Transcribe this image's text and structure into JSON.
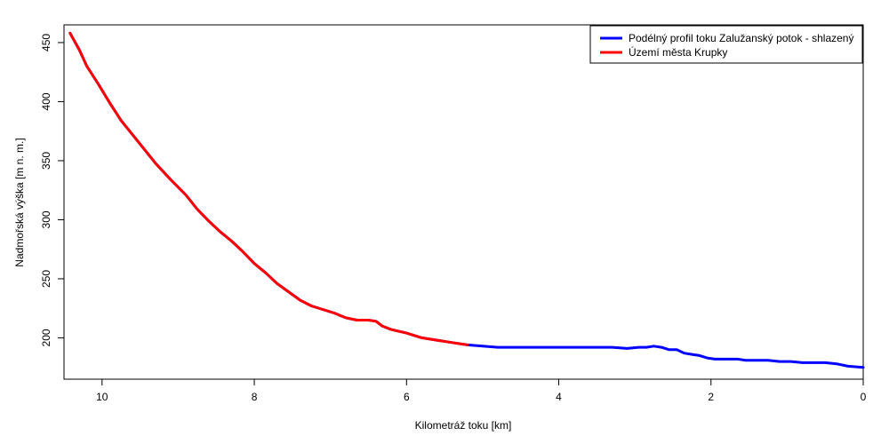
{
  "chart_data": {
    "type": "line",
    "xlabel": "Kilometráž toku [km]",
    "ylabel": "Nadmořská výška [m n. m.]",
    "xlim": [
      10.5,
      0
    ],
    "ylim": [
      165,
      465
    ],
    "x_ticks": [
      {
        "value": 10,
        "label": "10"
      },
      {
        "value": 8,
        "label": "8"
      },
      {
        "value": 6,
        "label": "6"
      },
      {
        "value": 4,
        "label": "4"
      },
      {
        "value": 2,
        "label": "2"
      },
      {
        "value": 0,
        "label": "0"
      }
    ],
    "y_ticks": [
      {
        "value": 200,
        "label": "200"
      },
      {
        "value": 250,
        "label": "250"
      },
      {
        "value": 300,
        "label": "300"
      },
      {
        "value": 350,
        "label": "350"
      },
      {
        "value": 400,
        "label": "400"
      },
      {
        "value": 450,
        "label": "450"
      }
    ],
    "grid": false,
    "legend_position": "top-right",
    "series": [
      {
        "name": "Podélný profil toku Zalužanský potok - shlazený",
        "color": "#0000ff",
        "x": [
          10.42,
          10.3,
          10.2,
          10.05,
          9.9,
          9.75,
          9.6,
          9.45,
          9.3,
          9.1,
          8.9,
          8.75,
          8.6,
          8.45,
          8.3,
          8.15,
          8.0,
          7.85,
          7.7,
          7.55,
          7.4,
          7.25,
          7.1,
          6.95,
          6.8,
          6.65,
          6.5,
          6.4,
          6.32,
          6.2,
          6.0,
          5.8,
          5.6,
          5.4,
          5.2,
          5.0,
          4.8,
          4.5,
          4.0,
          3.6,
          3.3,
          3.1,
          2.95,
          2.85,
          2.75,
          2.65,
          2.55,
          2.45,
          2.35,
          2.25,
          2.15,
          2.05,
          1.95,
          1.85,
          1.75,
          1.65,
          1.55,
          1.45,
          1.35,
          1.25,
          1.1,
          0.95,
          0.8,
          0.65,
          0.5,
          0.35,
          0.2,
          0.0
        ],
        "y": [
          458,
          444,
          430,
          415,
          399,
          384,
          372,
          360,
          348,
          334,
          321,
          309,
          299,
          290,
          282,
          273,
          263,
          255,
          246,
          239,
          232,
          227,
          224,
          221,
          217,
          215,
          215,
          214,
          210,
          207,
          204,
          200,
          198,
          196,
          194,
          193,
          192,
          192,
          192,
          192,
          192,
          191,
          192,
          192,
          193,
          192,
          190,
          190,
          187,
          186,
          185,
          183,
          182,
          182,
          182,
          182,
          181,
          181,
          181,
          181,
          180,
          180,
          179,
          179,
          179,
          178,
          176,
          175
        ]
      },
      {
        "name": "Území města Krupky",
        "color": "#ff0000",
        "x": [
          10.42,
          10.3,
          10.2,
          10.05,
          9.9,
          9.75,
          9.6,
          9.45,
          9.3,
          9.1,
          8.9,
          8.75,
          8.6,
          8.45,
          8.3,
          8.15,
          8.0,
          7.85,
          7.7,
          7.55,
          7.4,
          7.25,
          7.1,
          6.95,
          6.8,
          6.65,
          6.5,
          6.4,
          6.32,
          6.2,
          6.0,
          5.8,
          5.6,
          5.4,
          5.2
        ],
        "y": [
          458,
          444,
          430,
          415,
          399,
          384,
          372,
          360,
          348,
          334,
          321,
          309,
          299,
          290,
          282,
          273,
          263,
          255,
          246,
          239,
          232,
          227,
          224,
          221,
          217,
          215,
          215,
          214,
          210,
          207,
          204,
          200,
          198,
          196,
          194
        ]
      }
    ]
  }
}
